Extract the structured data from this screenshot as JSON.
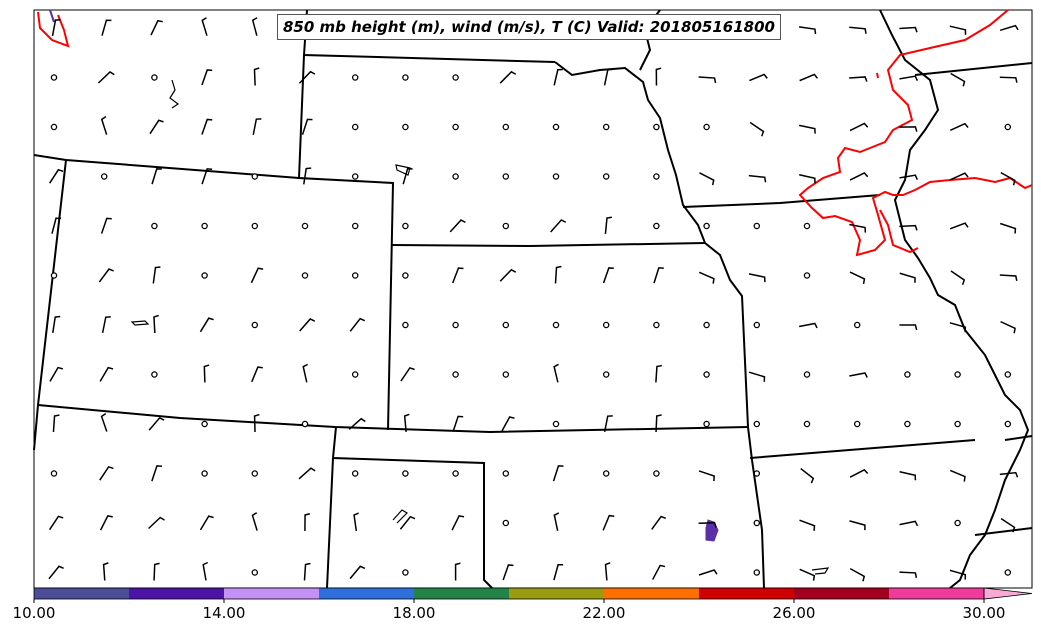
{
  "title": "850 mb height (m), wind (m/s), T (C) Valid: 201805161800",
  "colorbar": {
    "ticks": [
      "10.00",
      "14.00",
      "18.00",
      "22.00",
      "26.00",
      "30.00"
    ],
    "min": 10,
    "max": 30,
    "colors": [
      "#4b4d98",
      "#4b14a5",
      "#c491f7",
      "#2d6fdd",
      "#23844a",
      "#999b10",
      "#fc6f00",
      "#d10000",
      "#a3001f",
      "#ef3b9b",
      "#f9a9d6"
    ]
  },
  "map": {
    "border_color": "#000000",
    "isotherm_color": "#ff0000",
    "warm_patch_color": "#5a2fa8",
    "feature_icons": [
      "wind-barb-icon",
      "calm-circle-icon"
    ]
  }
}
